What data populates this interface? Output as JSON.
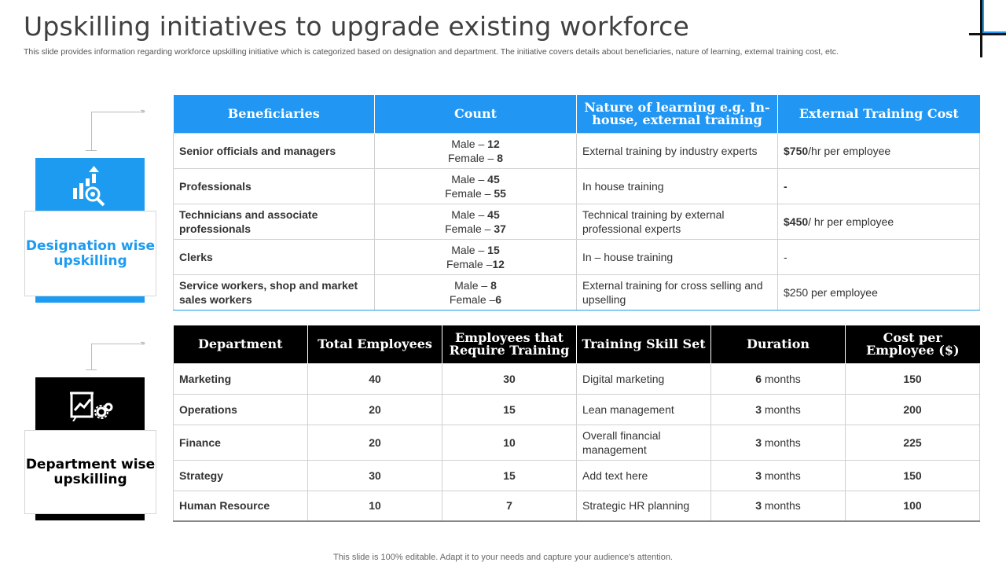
{
  "header": {
    "title": "Upskilling initiatives to upgrade existing workforce",
    "subtitle": "This slide provides information regarding workforce upskilling initiative which is categorized based on designation and department. The initiative covers details about beneficiaries, nature of learning, external training cost, etc."
  },
  "colors": {
    "accent": "#1d9bf0",
    "dark": "#000000"
  },
  "cards": {
    "designation": {
      "label": "Designation wise upskilling",
      "icon": "bar-chart-search-icon"
    },
    "department": {
      "label": "Department wise upskilling",
      "icon": "presentation-gears-icon"
    }
  },
  "table1": {
    "headers": [
      "Beneficiaries",
      "Count",
      "Nature of learning  e.g. In-house, external training",
      "External Training  Cost"
    ],
    "rows": [
      {
        "beneficiary": "Senior officials and managers",
        "male_label": "Male – ",
        "male": "12",
        "female_label": "Female – ",
        "female": "8",
        "nature": "External training by industry experts",
        "cost_bold": "$750",
        "cost_rest": "/hr per employee"
      },
      {
        "beneficiary": "Professionals",
        "male_label": "Male – ",
        "male": "45",
        "female_label": "Female – ",
        "female": "55",
        "nature": "In house training",
        "cost_bold": "-",
        "cost_rest": ""
      },
      {
        "beneficiary": "Technicians and associate professionals",
        "male_label": "Male – ",
        "male": "45",
        "female_label": "Female – ",
        "female": "37",
        "nature": "Technical training by external professional experts",
        "cost_bold": "$450",
        "cost_rest": "/ hr per employee"
      },
      {
        "beneficiary": "Clerks",
        "male_label": "Male – ",
        "male": "15",
        "female_label": "Female –",
        "female": "12",
        "nature": "In – house training",
        "cost_bold": "",
        "cost_rest": "-"
      },
      {
        "beneficiary": "Service workers, shop and market sales workers",
        "male_label": "Male – ",
        "male": "8",
        "female_label": "Female –",
        "female": "6",
        "nature": "External training for cross selling and upselling",
        "cost_bold": "",
        "cost_rest": "$250 per employee"
      }
    ]
  },
  "table2": {
    "headers": [
      "Department",
      "Total Employees",
      "Employees that Require Training",
      "Training Skill  Set",
      "Duration",
      "Cost per Employee ($)"
    ],
    "rows": [
      {
        "department": "Marketing",
        "total": "40",
        "require": "30",
        "skill": "Digital marketing",
        "duration_num": "6",
        "duration_unit": " months",
        "cost": "150"
      },
      {
        "department": "Operations",
        "total": "20",
        "require": "15",
        "skill": "Lean management",
        "duration_num": "3",
        "duration_unit": " months",
        "cost": "200"
      },
      {
        "department": "Finance",
        "total": "20",
        "require": "10",
        "skill": "Overall financial management",
        "duration_num": "3",
        "duration_unit": " months",
        "cost": "225"
      },
      {
        "department": "Strategy",
        "total": "30",
        "require": "15",
        "skill": "Add text here",
        "duration_num": "3",
        "duration_unit": " months",
        "cost": "150"
      },
      {
        "department": "Human Resource",
        "total": "10",
        "require": "7",
        "skill": "Strategic HR planning",
        "duration_num": "3",
        "duration_unit": " months",
        "cost": "100"
      }
    ]
  },
  "footer": {
    "text": "This slide is 100% editable. Adapt it to your needs and capture your audience's attention."
  }
}
